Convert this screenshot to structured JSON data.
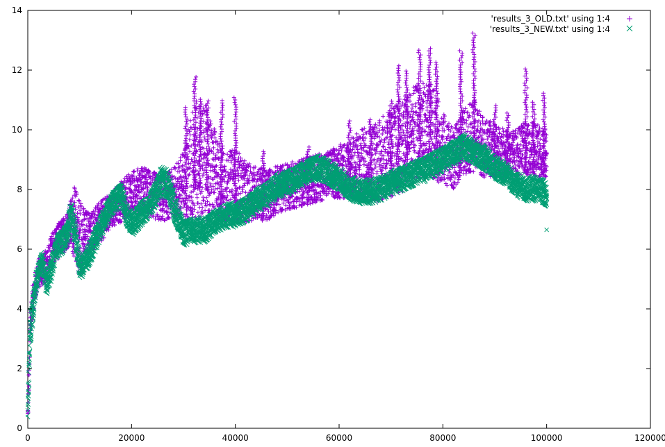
{
  "chart_data": {
    "type": "scatter",
    "title": "",
    "xlabel": "",
    "ylabel": "",
    "xlim": [
      0,
      120000
    ],
    "ylim": [
      0,
      14
    ],
    "x_ticks": [
      0,
      20000,
      40000,
      60000,
      80000,
      100000,
      120000
    ],
    "y_ticks": [
      0,
      2,
      4,
      6,
      8,
      10,
      12,
      14
    ],
    "x_tick_labels": [
      "0",
      "20000",
      "40000",
      "60000",
      "80000",
      "100000",
      "120000"
    ],
    "y_tick_labels": [
      "0",
      "2",
      "4",
      "6",
      "8",
      "10",
      "12",
      "14"
    ],
    "grid": false,
    "legend_position": "top-right",
    "series": [
      {
        "name": "'results_3_OLD.txt' using 1:4",
        "marker": "plus",
        "color": "#9400d3",
        "x": [
          0,
          500,
          1000,
          2000,
          3000,
          4000,
          5000,
          6000,
          7000,
          8000,
          9000,
          10000,
          11000,
          12000,
          13000,
          14000,
          16000,
          18000,
          20000,
          22000,
          24000,
          26000,
          28000,
          30000,
          32000,
          34000,
          36000,
          38000,
          40000,
          42000,
          44000,
          46000,
          48000,
          50000,
          52000,
          54000,
          56000,
          58000,
          60000,
          62000,
          64000,
          66000,
          68000,
          70000,
          72000,
          74000,
          76000,
          78000,
          80000,
          82000,
          84000,
          86000,
          88000,
          90000,
          92000,
          94000,
          96000,
          98000,
          100000
        ],
        "y": [
          0.5,
          3.6,
          4.4,
          5.2,
          5.3,
          5.6,
          6.1,
          6.3,
          6.5,
          6.8,
          6.9,
          6.4,
          6.5,
          6.6,
          6.7,
          6.9,
          7.3,
          7.6,
          7.9,
          8.0,
          7.8,
          7.7,
          7.9,
          8.1,
          8.8,
          8.9,
          8.6,
          8.0,
          8.2,
          7.9,
          7.9,
          7.8,
          8.0,
          8.1,
          8.2,
          8.3,
          8.4,
          8.5,
          8.6,
          8.7,
          8.8,
          8.9,
          9.0,
          9.2,
          9.5,
          9.8,
          10.0,
          9.9,
          9.4,
          9.0,
          9.6,
          9.8,
          9.4,
          9.3,
          9.2,
          9.2,
          9.4,
          9.3,
          9.2
        ],
        "spread": [
          0.3,
          0.6,
          0.5,
          0.5,
          0.5,
          0.6,
          0.6,
          0.6,
          0.6,
          0.7,
          1.2,
          1.4,
          0.8,
          0.7,
          0.7,
          0.7,
          0.6,
          0.7,
          0.7,
          0.8,
          0.8,
          0.8,
          0.8,
          1.2,
          2.2,
          2.0,
          1.4,
          1.2,
          1.2,
          1.0,
          0.9,
          0.9,
          0.8,
          0.8,
          0.8,
          0.8,
          0.8,
          0.8,
          0.9,
          1.0,
          1.2,
          1.3,
          1.4,
          1.5,
          1.6,
          1.6,
          1.6,
          1.6,
          1.2,
          1.0,
          1.1,
          1.2,
          1.0,
          0.9,
          0.8,
          0.8,
          0.9,
          0.9,
          0.8
        ],
        "spikes": [
          {
            "x": 30500,
            "y": 10.8
          },
          {
            "x": 32200,
            "y": 11.8
          },
          {
            "x": 33200,
            "y": 11.1
          },
          {
            "x": 34600,
            "y": 11.0
          },
          {
            "x": 37400,
            "y": 11.0
          },
          {
            "x": 40000,
            "y": 11.1
          },
          {
            "x": 45300,
            "y": 9.3
          },
          {
            "x": 54000,
            "y": 9.5
          },
          {
            "x": 62000,
            "y": 10.3
          },
          {
            "x": 66000,
            "y": 10.4
          },
          {
            "x": 70000,
            "y": 11.0
          },
          {
            "x": 71500,
            "y": 12.2
          },
          {
            "x": 73000,
            "y": 12.0
          },
          {
            "x": 75500,
            "y": 12.7
          },
          {
            "x": 77500,
            "y": 12.8
          },
          {
            "x": 78800,
            "y": 12.3
          },
          {
            "x": 83500,
            "y": 12.7
          },
          {
            "x": 86000,
            "y": 13.3
          },
          {
            "x": 90000,
            "y": 10.9
          },
          {
            "x": 92500,
            "y": 10.6
          },
          {
            "x": 96000,
            "y": 12.1
          },
          {
            "x": 97500,
            "y": 11.0
          },
          {
            "x": 99500,
            "y": 11.3
          }
        ]
      },
      {
        "name": "'results_3_NEW.txt' using 1:4",
        "marker": "cross",
        "color": "#009e73",
        "x": [
          0,
          500,
          1000,
          1500,
          2000,
          2800,
          3500,
          4500,
          5500,
          6500,
          7500,
          8200,
          9000,
          10000,
          11000,
          12000,
          13000,
          14000,
          15000,
          16000,
          17000,
          18000,
          19000,
          20000,
          22000,
          24000,
          25500,
          27000,
          28500,
          30000,
          32000,
          34000,
          36000,
          38000,
          40000,
          42000,
          44000,
          46000,
          48000,
          50000,
          52000,
          54000,
          56000,
          58000,
          60000,
          62000,
          64000,
          66000,
          68000,
          70000,
          72000,
          74000,
          76000,
          78000,
          80000,
          82000,
          84000,
          86000,
          88000,
          90000,
          92000,
          94000,
          96000,
          98000,
          100000
        ],
        "y": [
          0.6,
          3.4,
          4.0,
          4.8,
          5.2,
          5.6,
          4.8,
          5.3,
          6.1,
          6.2,
          6.5,
          7.1,
          6.6,
          5.4,
          5.5,
          5.9,
          6.3,
          6.7,
          7.1,
          7.4,
          7.7,
          7.8,
          7.1,
          6.8,
          7.2,
          7.6,
          8.2,
          8.1,
          7.2,
          6.5,
          6.6,
          6.6,
          6.9,
          7.1,
          7.1,
          7.3,
          7.6,
          7.8,
          8.1,
          8.2,
          8.4,
          8.6,
          8.7,
          8.5,
          8.3,
          8.0,
          7.9,
          7.9,
          8.0,
          8.2,
          8.3,
          8.5,
          8.6,
          8.8,
          9.0,
          9.2,
          9.4,
          9.2,
          9.0,
          8.7,
          8.5,
          8.1,
          8.0,
          8.0,
          7.8
        ],
        "spread": [
          0.4,
          0.6,
          0.5,
          0.4,
          0.4,
          0.4,
          0.4,
          0.4,
          0.4,
          0.4,
          0.4,
          0.5,
          0.5,
          0.4,
          0.4,
          0.4,
          0.4,
          0.4,
          0.4,
          0.4,
          0.4,
          0.4,
          0.4,
          0.4,
          0.4,
          0.4,
          0.5,
          0.5,
          0.5,
          0.4,
          0.4,
          0.4,
          0.4,
          0.4,
          0.4,
          0.4,
          0.4,
          0.4,
          0.4,
          0.4,
          0.4,
          0.4,
          0.4,
          0.4,
          0.4,
          0.4,
          0.4,
          0.4,
          0.4,
          0.4,
          0.4,
          0.4,
          0.4,
          0.4,
          0.4,
          0.4,
          0.4,
          0.4,
          0.4,
          0.4,
          0.4,
          0.4,
          0.4,
          0.4,
          0.4
        ],
        "outliers": [
          {
            "x": 100000,
            "y": 6.65
          }
        ]
      }
    ]
  }
}
